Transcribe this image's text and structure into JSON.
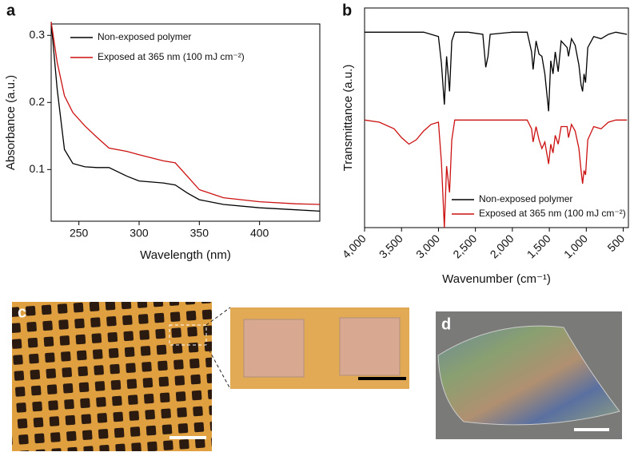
{
  "chart_data": [
    {
      "type": "line",
      "panel_label": "a",
      "x_label": "Wavelength (nm)",
      "y_label": "Absorbance (a.u.)",
      "xlim": [
        227,
        450
      ],
      "xticks": [
        250,
        300,
        350,
        400
      ],
      "ylim": [
        0.023,
        0.317
      ],
      "yticks": [
        0.1,
        0.2,
        0.3
      ],
      "x": [
        227,
        232,
        238,
        245,
        255,
        265,
        275,
        290,
        300,
        320,
        330,
        340,
        350,
        370,
        400,
        430,
        450
      ],
      "series": [
        {
          "name": "Non-exposed polymer",
          "color": "#000000",
          "values": [
            0.32,
            0.22,
            0.13,
            0.109,
            0.104,
            0.103,
            0.103,
            0.09,
            0.083,
            0.08,
            0.077,
            0.065,
            0.055,
            0.048,
            0.043,
            0.04,
            0.038
          ]
        },
        {
          "name": "Exposed at 365 nm (100 mJ cm⁻²)",
          "color": "#cc1111",
          "values": [
            0.32,
            0.26,
            0.21,
            0.185,
            0.165,
            0.148,
            0.132,
            0.127,
            0.122,
            0.113,
            0.11,
            0.09,
            0.07,
            0.058,
            0.052,
            0.049,
            0.048
          ]
        }
      ]
    },
    {
      "type": "line",
      "panel_label": "b",
      "x_label": "Wavenumber (cm⁻¹)",
      "y_label": "Transmittance (a.u.)",
      "xlim": [
        4000,
        430
      ],
      "xticks": [
        {
          "value": 4000,
          "label": "4,000"
        },
        {
          "value": 3500,
          "label": "3,500"
        },
        {
          "value": 3000,
          "label": "3,000"
        },
        {
          "value": 2500,
          "label": "2,500"
        },
        {
          "value": 2000,
          "label": "2,000"
        },
        {
          "value": 1500,
          "label": "1,500"
        },
        {
          "value": 1000,
          "label": "1,000"
        },
        500
      ],
      "ylim": [
        0,
        10
      ],
      "x": [
        4000,
        3800,
        3600,
        3500,
        3400,
        3300,
        3200,
        3100,
        3000,
        2960,
        2920,
        2890,
        2850,
        2820,
        2780,
        2600,
        2400,
        2360,
        2330,
        2300,
        2000,
        1800,
        1740,
        1720,
        1680,
        1640,
        1600,
        1560,
        1510,
        1480,
        1450,
        1420,
        1380,
        1340,
        1260,
        1240,
        1200,
        1150,
        1100,
        1070,
        1050,
        1030,
        1010,
        980,
        900,
        800,
        700,
        600,
        450
      ],
      "series": [
        {
          "name": "Non-exposed polymer",
          "color": "#000000",
          "values": [
            8.9,
            8.9,
            8.9,
            8.9,
            8.9,
            8.9,
            8.9,
            8.8,
            8.7,
            7.5,
            5.6,
            7.8,
            6.2,
            8.5,
            8.9,
            8.9,
            8.8,
            7.3,
            7.8,
            8.8,
            8.9,
            8.9,
            8.0,
            7.2,
            8.5,
            7.9,
            7.8,
            7.0,
            5.3,
            7.6,
            7.0,
            8.0,
            7.1,
            8.5,
            8.2,
            7.8,
            8.6,
            8.3,
            7.4,
            6.5,
            6.2,
            7.0,
            6.6,
            8.2,
            8.7,
            8.6,
            8.8,
            8.9,
            8.8
          ]
        },
        {
          "name": "Exposed at 365 nm (100 mJ cm⁻²)",
          "color": "#cc1111",
          "values": [
            4.9,
            4.8,
            4.5,
            4.1,
            3.8,
            4.0,
            4.4,
            4.7,
            4.8,
            3.0,
            0.0,
            2.8,
            1.6,
            4.0,
            4.9,
            4.9,
            4.9,
            4.9,
            4.9,
            4.9,
            4.9,
            4.9,
            4.5,
            3.9,
            4.6,
            4.0,
            3.6,
            3.9,
            2.9,
            3.8,
            3.4,
            4.2,
            3.8,
            4.6,
            4.6,
            4.1,
            4.7,
            4.4,
            3.6,
            2.6,
            2.0,
            2.6,
            2.4,
            4.0,
            4.6,
            4.5,
            4.8,
            4.9,
            4.9
          ]
        }
      ]
    }
  ],
  "images": [
    {
      "panel_label": "c"
    },
    {
      "panel_label": "d"
    }
  ]
}
